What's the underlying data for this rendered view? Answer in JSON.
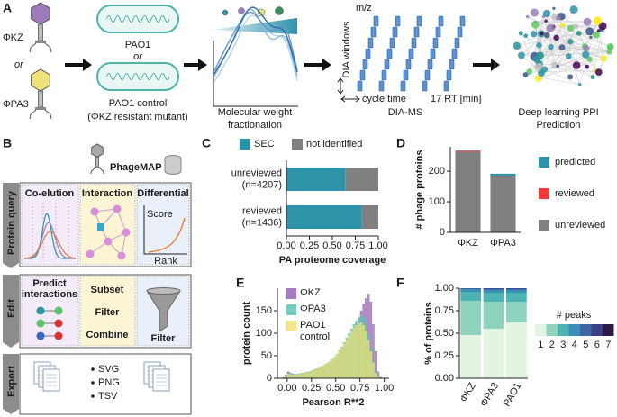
{
  "panel_labels": [
    "A",
    "B",
    "C",
    "D",
    "E",
    "F"
  ],
  "panel_a": {
    "phage_1": "ΦKZ",
    "or_1": "or",
    "phage_2": "ΦPA3",
    "strain_1": "PAO1",
    "or_2": "or",
    "strain_2": "PAO1 control",
    "strain_2_note": "(ΦKZ resistant mutant)",
    "fractionation": [
      "Molecular weight",
      "fractionation"
    ],
    "ms_mz": "m/z",
    "ms_windows": "DIA windows",
    "ms_cycle": "cycle time",
    "ms_rt": "17 RT [min]",
    "ms_title": "DIA-MS",
    "ppi": [
      "Deep learning PPI",
      "Prediction"
    ]
  },
  "panel_b": {
    "title": "PhageMAP",
    "query": {
      "tab": "Protein query",
      "coelution": "Co-elution",
      "interaction": "Interaction",
      "differential": "Differential",
      "score": "Score",
      "rank": "Rank"
    },
    "edit": {
      "tab": "Edit",
      "predict": [
        "Predict",
        "interactions"
      ],
      "subset": "Subset",
      "filter": "Filter",
      "combine": "Combine",
      "filter_2": "Filter"
    },
    "export": {
      "tab": "Export",
      "formats": [
        "SVG",
        "PNG",
        "TSV"
      ]
    }
  },
  "chart_data": [
    {
      "type": "bar",
      "orientation": "horizontal",
      "stacked": true,
      "categories": [
        [
          "unreviewed",
          "(n=4207)"
        ],
        [
          "reviewed",
          "(n=1436)"
        ]
      ],
      "series": [
        {
          "name": "SEC",
          "color": "#2e93a9",
          "values": [
            0.64,
            0.82
          ]
        },
        {
          "name": "not identified",
          "color": "#808080",
          "values": [
            0.36,
            0.18
          ]
        }
      ],
      "xlim": [
        0,
        1
      ],
      "xticks": [
        {
          "value": 0,
          "label": "0.00"
        },
        {
          "value": 0.25,
          "label": "0.25"
        },
        {
          "value": 0.5,
          "label": "0.50"
        },
        {
          "value": 0.75,
          "label": "0.75"
        },
        {
          "value": 1,
          "label": "1.00"
        }
      ],
      "xlabel": "PA proteome coverage",
      "legend": "top"
    },
    {
      "type": "bar",
      "stacked": true,
      "categories": [
        "ΦKZ",
        "ΦPA3"
      ],
      "series": [
        {
          "name": "unreviewed",
          "color": "#808080",
          "values": [
            264,
            182
          ]
        },
        {
          "name": "reviewed",
          "color": "#f0393a",
          "values": [
            3,
            2
          ]
        },
        {
          "name": "predicted",
          "color": "#2e93a9",
          "values": [
            1,
            8
          ]
        }
      ],
      "ylim": [
        0,
        280
      ],
      "yticks": [
        0,
        100,
        200
      ],
      "ylabel": "# phage proteins",
      "legend": "right"
    },
    {
      "type": "histogram",
      "bins": [
        -0.05,
        -0.025,
        0,
        0.025,
        0.05,
        0.075,
        0.1,
        0.125,
        0.15,
        0.175,
        0.2,
        0.225,
        0.25,
        0.275,
        0.3,
        0.325,
        0.35,
        0.375,
        0.4,
        0.425,
        0.45,
        0.475,
        0.5,
        0.525,
        0.55,
        0.575,
        0.6,
        0.625,
        0.65,
        0.675,
        0.7,
        0.725,
        0.75,
        0.775,
        0.8,
        0.825,
        0.85,
        0.875,
        0.9,
        0.925,
        0.95,
        0.975,
        1.0
      ],
      "series": [
        {
          "name": "ΦKZ",
          "color": "#9466b3",
          "values": [
            2,
            8,
            15,
            12,
            10,
            9,
            10,
            11,
            12,
            13,
            14,
            15,
            17,
            18,
            20,
            22,
            25,
            28,
            30,
            34,
            38,
            42,
            48,
            55,
            62,
            70,
            78,
            88,
            98,
            110,
            122,
            135,
            150,
            165,
            178,
            188,
            170,
            120,
            60,
            15,
            3,
            0
          ]
        },
        {
          "name": "ΦPA3",
          "color": "#5cc3b0",
          "values": [
            1,
            6,
            12,
            10,
            9,
            9,
            10,
            11,
            12,
            13,
            14,
            16,
            18,
            20,
            22,
            25,
            28,
            31,
            34,
            38,
            43,
            48,
            54,
            62,
            70,
            80,
            90,
            100,
            110,
            120,
            128,
            135,
            140,
            138,
            125,
            100,
            70,
            40,
            15,
            4,
            1,
            0
          ]
        },
        {
          "name": "PAO1 control",
          "color": "#ece373",
          "values": [
            1,
            5,
            10,
            9,
            8,
            8,
            9,
            10,
            11,
            12,
            13,
            15,
            17,
            19,
            21,
            24,
            27,
            30,
            33,
            37,
            42,
            47,
            53,
            60,
            68,
            77,
            86,
            95,
            104,
            112,
            118,
            122,
            124,
            118,
            105,
            85,
            60,
            35,
            12,
            3,
            1,
            0
          ]
        }
      ],
      "xlim": [
        -0.1,
        1.05
      ],
      "xticks": [
        {
          "value": 0,
          "label": "0.00"
        },
        {
          "value": 0.25,
          "label": "0.25"
        },
        {
          "value": 0.5,
          "label": "0.50"
        },
        {
          "value": 0.75,
          "label": "0.75"
        },
        {
          "value": 1,
          "label": "1.00"
        }
      ],
      "ylim": [
        0,
        200
      ],
      "yticks": [
        0,
        50,
        100,
        150
      ],
      "xlabel": "Pearson R**2",
      "ylabel": "protein count",
      "legend": "upper left"
    },
    {
      "type": "bar",
      "stacked": true,
      "categories": [
        "ΦKZ",
        "ΦPA3",
        "PAO1"
      ],
      "series": [
        {
          "name": "1",
          "color": "#e3f4e1",
          "values": [
            0.48,
            0.55,
            0.62
          ]
        },
        {
          "name": "2",
          "color": "#8fd3bf",
          "values": [
            0.38,
            0.3,
            0.23
          ]
        },
        {
          "name": "3",
          "color": "#4eb3b5",
          "values": [
            0.1,
            0.1,
            0.1
          ]
        },
        {
          "name": "4",
          "color": "#3a8fb7",
          "values": [
            0.03,
            0.03,
            0.03
          ]
        },
        {
          "name": "5",
          "color": "#3c66a6",
          "values": [
            0.01,
            0.015,
            0.015
          ]
        },
        {
          "name": "6",
          "color": "#3b3f86",
          "values": [
            0,
            0.005,
            0.005
          ]
        },
        {
          "name": "7",
          "color": "#2b1a45",
          "values": [
            0,
            0,
            0
          ]
        }
      ],
      "ylim": [
        0,
        1
      ],
      "yticks": [
        {
          "value": 0,
          "label": "0.00"
        },
        {
          "value": 0.25,
          "label": "0.25"
        },
        {
          "value": 0.5,
          "label": "0.50"
        },
        {
          "value": 0.75,
          "label": "0.75"
        },
        {
          "value": 1,
          "label": "1.00"
        }
      ],
      "ylabel": "% of proteins",
      "legend": "right",
      "legend_title": "# peaks"
    }
  ]
}
